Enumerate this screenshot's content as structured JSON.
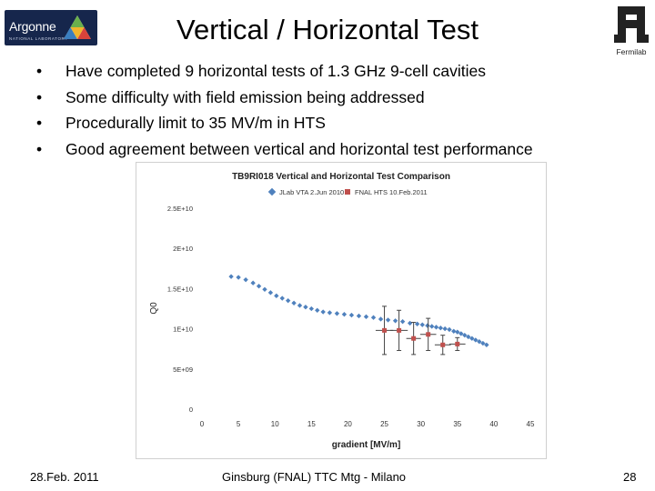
{
  "header": {
    "title": "Vertical / Horizontal Test",
    "argonne_logo": {
      "wordmark": "Argonne",
      "subline": "NATIONAL LABORATORY"
    },
    "fermilab_logo": {
      "caption": "Fermilab"
    }
  },
  "bullets": [
    "Have completed 9 horizontal tests of 1.3 GHz 9-cell cavities",
    "Some difficulty with field emission being addressed",
    "Procedurally limit to 35 MV/m in HTS",
    "Good agreement between vertical and horizontal test performance"
  ],
  "bullet_glyph": "•",
  "chart_data": {
    "type": "scatter",
    "title": "TB9RI018 Vertical and Horizontal Test Comparison",
    "xlabel": "gradient [MV/m]",
    "ylabel": "Q0",
    "xlim": [
      0,
      45
    ],
    "ylim": [
      0,
      25000000000
    ],
    "x_ticks": [
      "0",
      "5",
      "10",
      "15",
      "20",
      "25",
      "30",
      "35",
      "40",
      "45"
    ],
    "y_ticks": [
      "0",
      "5E+09",
      "1E+10",
      "1.5E+10",
      "2E+10",
      "2.5E+10"
    ],
    "grid": false,
    "legend": "top",
    "series": [
      {
        "name": "JLab VTA 2.Jun 2010",
        "color": "#4f81bd",
        "marker": "diamond",
        "x": [
          4.0,
          5.0,
          6.0,
          7.0,
          7.8,
          8.6,
          9.4,
          10.2,
          11.0,
          11.8,
          12.6,
          13.4,
          14.2,
          15.0,
          15.8,
          16.6,
          17.5,
          18.5,
          19.5,
          20.5,
          21.5,
          22.5,
          23.5,
          24.5,
          25.5,
          26.5,
          27.5,
          28.5,
          29.5,
          30.2,
          30.9,
          31.5,
          32.1,
          32.7,
          33.3,
          33.9,
          34.5,
          35.0,
          35.5,
          36.0,
          36.5,
          37.0,
          37.5,
          38.0,
          38.5,
          39.0
        ],
        "y": [
          16500000000.0,
          16400000000.0,
          16100000000.0,
          15700000000.0,
          15300000000.0,
          14900000000.0,
          14500000000.0,
          14100000000.0,
          13800000000.0,
          13500000000.0,
          13200000000.0,
          12900000000.0,
          12700000000.0,
          12500000000.0,
          12300000000.0,
          12100000000.0,
          12000000000.0,
          11900000000.0,
          11800000000.0,
          11700000000.0,
          11600000000.0,
          11500000000.0,
          11400000000.0,
          11200000000.0,
          11100000000.0,
          11000000000.0,
          10900000000.0,
          10700000000.0,
          10600000000.0,
          10500000000.0,
          10400000000.0,
          10300000000.0,
          10200000000.0,
          10100000000.0,
          10000000000.0,
          9900000000.0,
          9700000000.0,
          9600000000.0,
          9400000000.0,
          9200000000.0,
          9000000000.0,
          8800000000.0,
          8600000000.0,
          8400000000.0,
          8200000000.0,
          8000000000.0
        ]
      },
      {
        "name": "FNAL HTS 10.Feb.2011",
        "color": "#c0504d",
        "marker": "square",
        "x": [
          25.0,
          27.0,
          29.0,
          31.0,
          33.0,
          35.0
        ],
        "y": [
          9800000000.0,
          9800000000.0,
          8800000000.0,
          9300000000.0,
          8000000000.0,
          8100000000.0
        ],
        "x_error": [
          1.2,
          1.2,
          1.0,
          1.1,
          1.1,
          1.1
        ],
        "y_error": [
          3000000000.0,
          2500000000.0,
          2000000000.0,
          2000000000.0,
          1200000000.0,
          800000000.0
        ]
      }
    ]
  },
  "footer": {
    "date": "28.Feb. 2011",
    "center": "Ginsburg (FNAL) TTC Mtg - Milano",
    "page": "28"
  }
}
